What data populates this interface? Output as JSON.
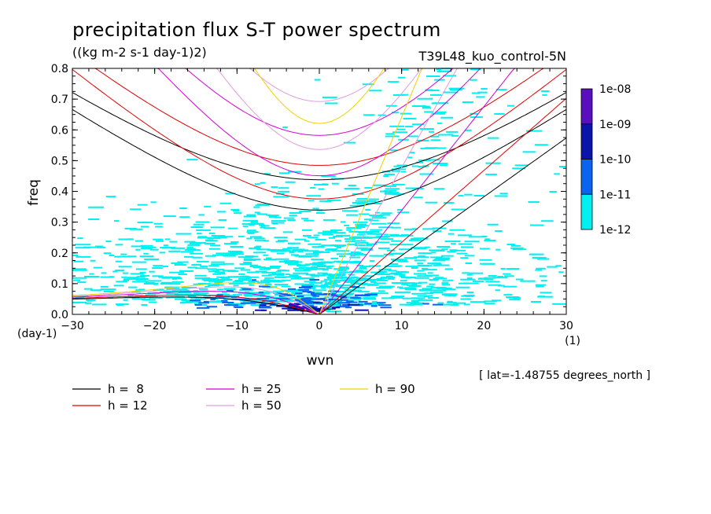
{
  "chart_data": {
    "type": "heatmap",
    "title": "precipitation flux S-T power spectrum",
    "subtitle": "((kg m-2 s-1 day-1)2)",
    "run_label": "T39L48_kuo_control-5N",
    "xlabel": "wvn",
    "ylabel": "freq",
    "x_unit": "(1)",
    "y_unit": "(day-1)",
    "xlim": [
      -30,
      30
    ],
    "ylim": [
      0,
      0.8
    ],
    "x_ticks": [
      "−30",
      "−20",
      "−10",
      "0",
      "10",
      "20",
      "30"
    ],
    "y_ticks": [
      "0.0",
      "0.1",
      "0.2",
      "0.3",
      "0.4",
      "0.5",
      "0.6",
      "0.7",
      "0.8"
    ],
    "x_tick_values": [
      -30,
      -20,
      -10,
      0,
      10,
      20,
      30
    ],
    "y_tick_values": [
      0,
      0.1,
      0.2,
      0.3,
      0.4,
      0.5,
      0.6,
      0.7,
      0.8
    ],
    "footnote": "[ lat=-1.48755 degrees_north ]",
    "colorbar": {
      "labels": [
        "1e-08",
        "1e-09",
        "1e-10",
        "1e-11",
        "1e-12"
      ],
      "colors": [
        "#5a0fbe",
        "#0a14aa",
        "#0a64f0",
        "#00f0f0"
      ]
    },
    "dispersion_curves": [
      {
        "h": 8,
        "label": "h =  8",
        "color": "#000000"
      },
      {
        "h": 12,
        "label": "h = 12",
        "color": "#e00000"
      },
      {
        "h": 25,
        "label": "h = 25",
        "color": "#d200d2"
      },
      {
        "h": 50,
        "label": "h = 50",
        "color": "#e09ce0"
      },
      {
        "h": 90,
        "label": "h = 90",
        "color": "#f0d200"
      }
    ],
    "power_regions": [
      {
        "level": "1e-12 to 1e-11",
        "color": "#00f0f0",
        "x_center": -3,
        "x_spread": 15,
        "y_peak": 0.03,
        "y_spread": 0.18
      },
      {
        "level": "1e-11 to 1e-10",
        "color": "#0a64f0",
        "x_center": -2,
        "x_spread": 6,
        "y_peak": 0.02,
        "y_spread": 0.04
      },
      {
        "level": "1e-10 to 1e-09",
        "color": "#0a14aa",
        "x_center": -1,
        "x_spread": 3,
        "y_peak": 0.01,
        "y_spread": 0.02
      }
    ]
  }
}
